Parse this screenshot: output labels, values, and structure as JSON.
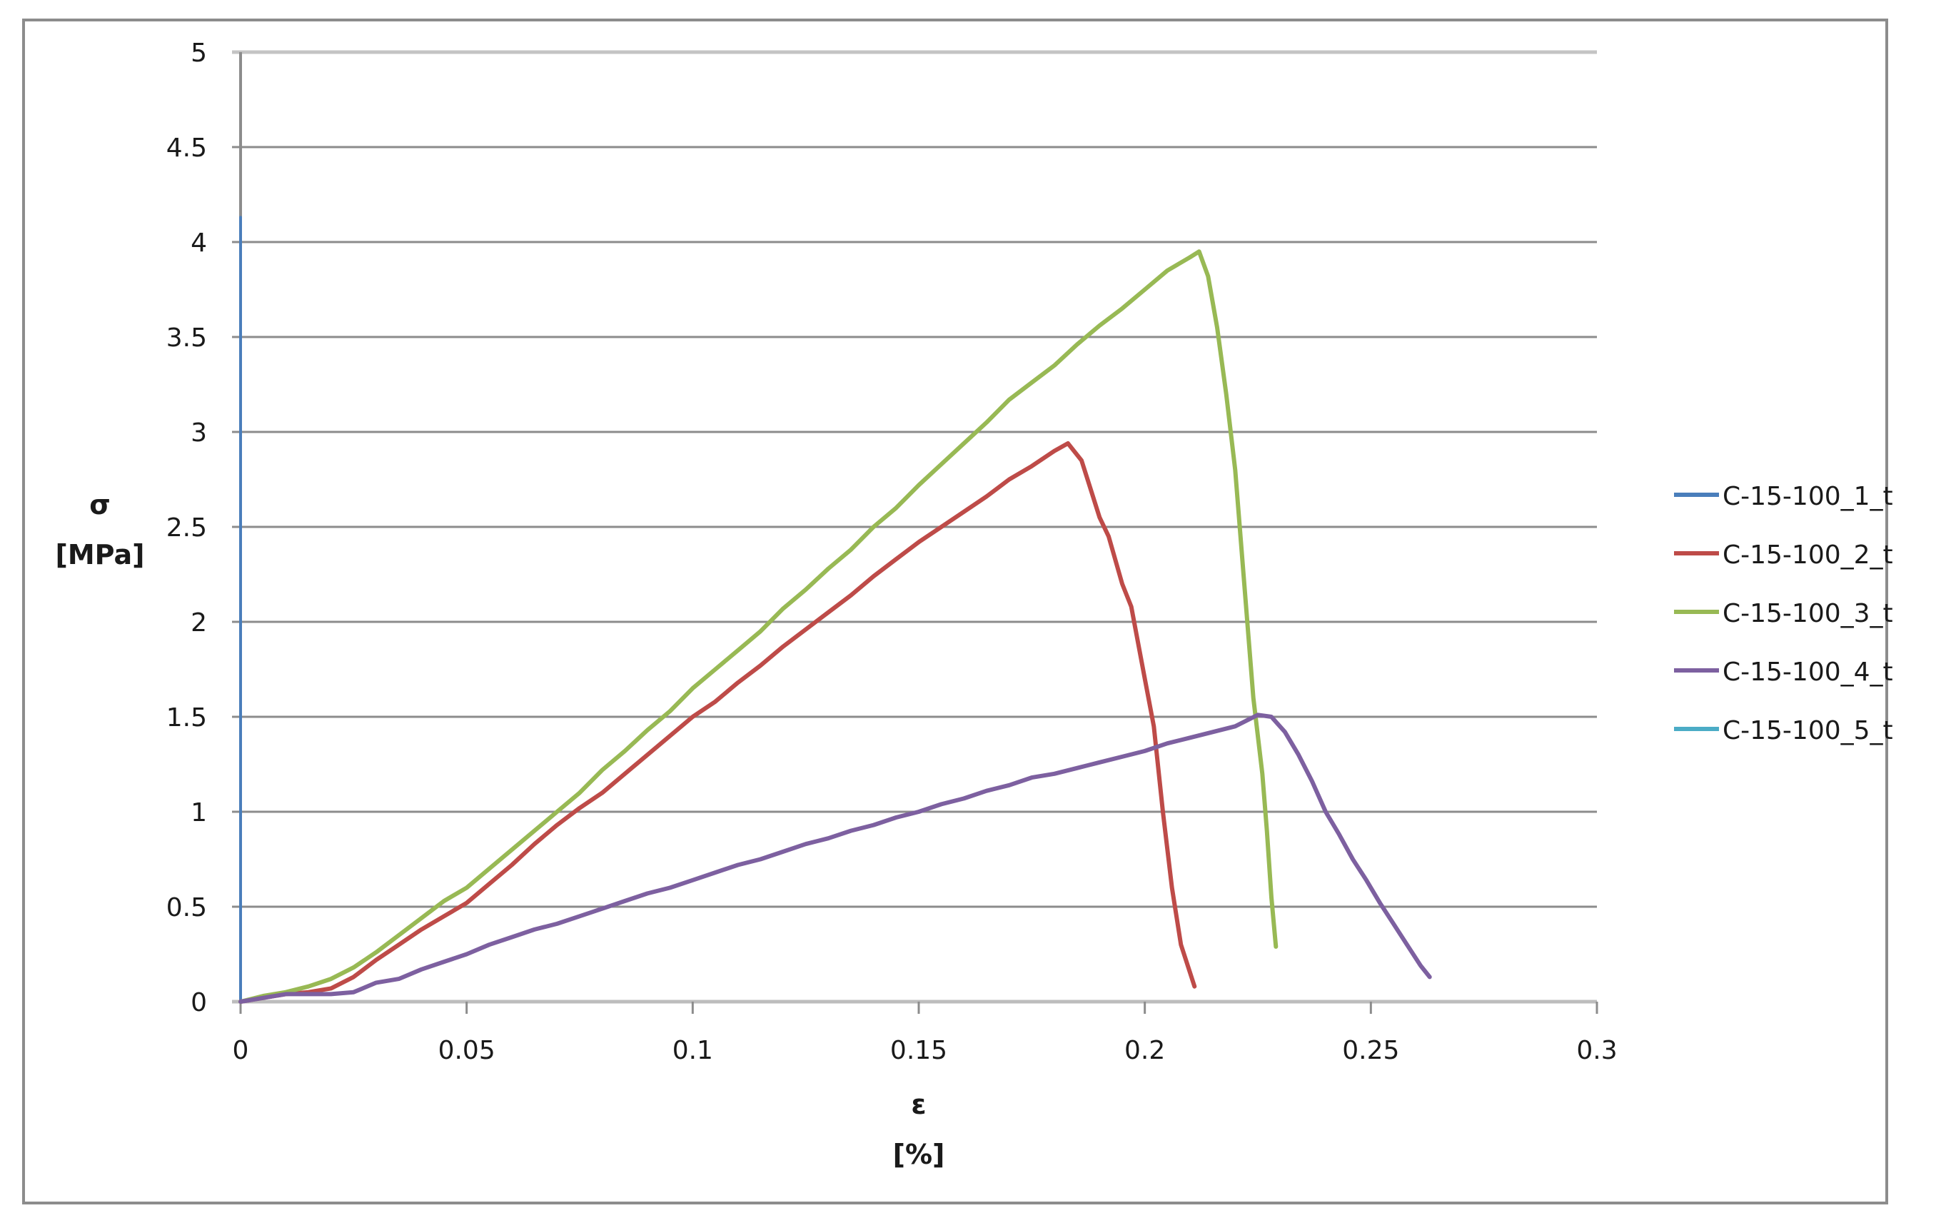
{
  "chart_data": {
    "type": "line",
    "title": "",
    "xlabel": "ε",
    "xlabel_unit": "[%]",
    "ylabel": "σ",
    "ylabel_unit": "[MPa]",
    "xlim": [
      0,
      0.3
    ],
    "ylim": [
      0,
      5
    ],
    "x_ticks": [
      0,
      0.05,
      0.1,
      0.15,
      0.2,
      0.25,
      0.3
    ],
    "x_tick_labels": [
      "0",
      "0.05",
      "0.1",
      "0.15",
      "0.2",
      "0.25",
      "0.3"
    ],
    "y_ticks": [
      0,
      0.5,
      1,
      1.5,
      2,
      2.5,
      3,
      3.5,
      4,
      4.5,
      5
    ],
    "y_tick_labels": [
      "0",
      "0.5",
      "1",
      "1.5",
      "2",
      "2.5",
      "3",
      "3.5",
      "4",
      "4.5",
      "5"
    ],
    "grid": {
      "horizontal": true,
      "vertical": false
    },
    "legend_position": "right",
    "series": [
      {
        "name": "C-15-100_1_t",
        "color": "#4a7ebb",
        "x": [
          0,
          0
        ],
        "y": [
          0,
          4.13
        ]
      },
      {
        "name": "C-15-100_2_t",
        "color": "#be4b48",
        "x": [
          0,
          0.005,
          0.01,
          0.015,
          0.02,
          0.025,
          0.03,
          0.035,
          0.04,
          0.045,
          0.05,
          0.055,
          0.06,
          0.065,
          0.07,
          0.075,
          0.08,
          0.085,
          0.09,
          0.095,
          0.1,
          0.105,
          0.11,
          0.115,
          0.12,
          0.125,
          0.13,
          0.135,
          0.14,
          0.145,
          0.15,
          0.155,
          0.16,
          0.165,
          0.17,
          0.175,
          0.18,
          0.183,
          0.186,
          0.188,
          0.19,
          0.192,
          0.195,
          0.197,
          0.2,
          0.202,
          0.204,
          0.206,
          0.208,
          0.211
        ],
        "y": [
          0,
          0.02,
          0.04,
          0.05,
          0.07,
          0.13,
          0.22,
          0.3,
          0.38,
          0.45,
          0.52,
          0.62,
          0.72,
          0.83,
          0.93,
          1.02,
          1.1,
          1.2,
          1.3,
          1.4,
          1.5,
          1.58,
          1.68,
          1.77,
          1.87,
          1.96,
          2.05,
          2.14,
          2.24,
          2.33,
          2.42,
          2.5,
          2.58,
          2.66,
          2.75,
          2.82,
          2.9,
          2.94,
          2.85,
          2.7,
          2.55,
          2.45,
          2.2,
          2.08,
          1.7,
          1.45,
          1.0,
          0.6,
          0.3,
          0.08
        ]
      },
      {
        "name": "C-15-100_3_t",
        "color": "#98b954",
        "x": [
          0,
          0.005,
          0.01,
          0.015,
          0.02,
          0.025,
          0.03,
          0.035,
          0.04,
          0.045,
          0.05,
          0.055,
          0.06,
          0.065,
          0.07,
          0.075,
          0.08,
          0.085,
          0.09,
          0.095,
          0.1,
          0.105,
          0.11,
          0.115,
          0.12,
          0.125,
          0.13,
          0.135,
          0.14,
          0.145,
          0.15,
          0.155,
          0.16,
          0.165,
          0.17,
          0.175,
          0.18,
          0.185,
          0.19,
          0.195,
          0.2,
          0.205,
          0.21,
          0.212,
          0.214,
          0.216,
          0.218,
          0.22,
          0.222,
          0.224,
          0.226,
          0.227,
          0.228,
          0.229
        ],
        "y": [
          0,
          0.03,
          0.05,
          0.08,
          0.12,
          0.18,
          0.26,
          0.35,
          0.44,
          0.53,
          0.6,
          0.7,
          0.8,
          0.9,
          1.0,
          1.1,
          1.22,
          1.32,
          1.43,
          1.53,
          1.65,
          1.75,
          1.85,
          1.95,
          2.07,
          2.17,
          2.28,
          2.38,
          2.5,
          2.6,
          2.72,
          2.83,
          2.94,
          3.05,
          3.17,
          3.26,
          3.35,
          3.46,
          3.56,
          3.65,
          3.75,
          3.85,
          3.92,
          3.95,
          3.82,
          3.55,
          3.2,
          2.8,
          2.2,
          1.6,
          1.2,
          0.9,
          0.55,
          0.29
        ]
      },
      {
        "name": "C-15-100_4_t",
        "color": "#7d60a0",
        "x": [
          0,
          0.005,
          0.01,
          0.015,
          0.02,
          0.025,
          0.03,
          0.035,
          0.04,
          0.045,
          0.05,
          0.055,
          0.06,
          0.065,
          0.07,
          0.075,
          0.08,
          0.085,
          0.09,
          0.095,
          0.1,
          0.105,
          0.11,
          0.115,
          0.12,
          0.125,
          0.13,
          0.135,
          0.14,
          0.145,
          0.15,
          0.155,
          0.16,
          0.165,
          0.17,
          0.175,
          0.18,
          0.185,
          0.19,
          0.195,
          0.2,
          0.205,
          0.21,
          0.215,
          0.22,
          0.225,
          0.228,
          0.231,
          0.234,
          0.237,
          0.24,
          0.243,
          0.246,
          0.249,
          0.252,
          0.255,
          0.258,
          0.261,
          0.263
        ],
        "y": [
          0,
          0.02,
          0.04,
          0.04,
          0.04,
          0.05,
          0.1,
          0.12,
          0.17,
          0.21,
          0.25,
          0.3,
          0.34,
          0.38,
          0.41,
          0.45,
          0.49,
          0.53,
          0.57,
          0.6,
          0.64,
          0.68,
          0.72,
          0.75,
          0.79,
          0.83,
          0.86,
          0.9,
          0.93,
          0.97,
          1.0,
          1.04,
          1.07,
          1.11,
          1.14,
          1.18,
          1.2,
          1.23,
          1.26,
          1.29,
          1.32,
          1.36,
          1.39,
          1.42,
          1.45,
          1.51,
          1.5,
          1.42,
          1.3,
          1.16,
          1.0,
          0.88,
          0.75,
          0.64,
          0.52,
          0.41,
          0.3,
          0.19,
          0.13
        ]
      },
      {
        "name": "C-15-100_5_t",
        "color": "#4bacc6",
        "x": [],
        "y": []
      }
    ]
  }
}
